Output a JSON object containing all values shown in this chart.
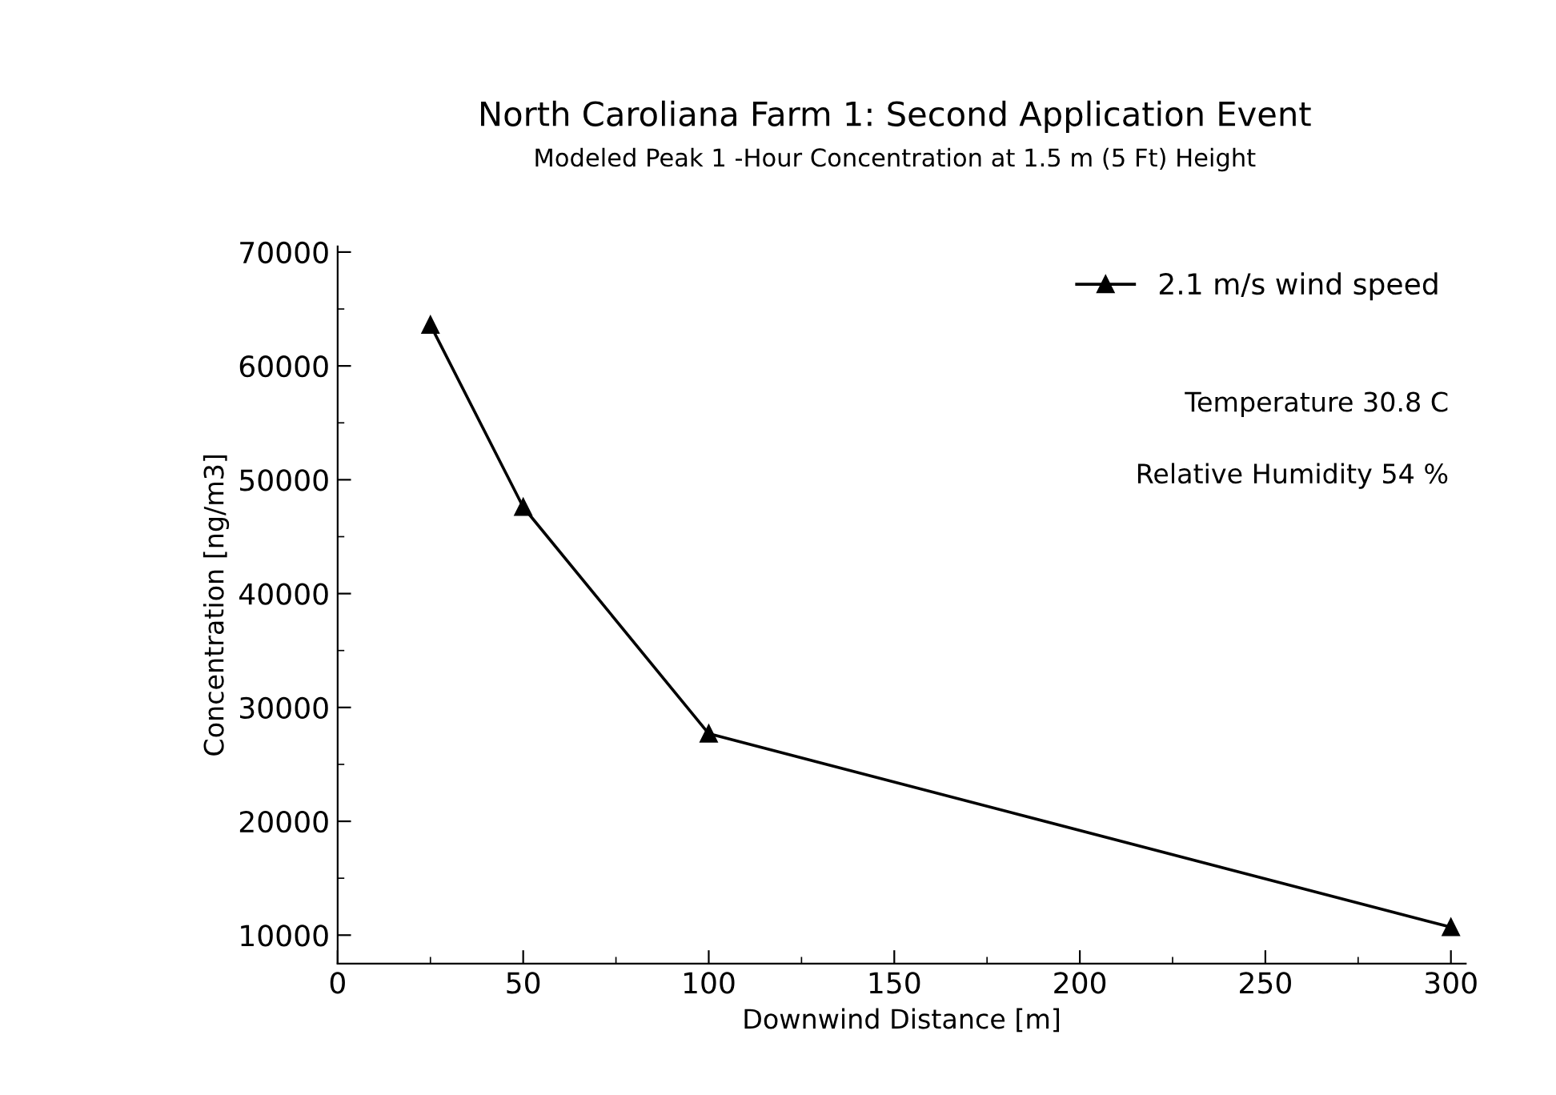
{
  "chart_data": {
    "type": "line",
    "title": "North Caroliana Farm 1: Second Application Event",
    "subtitle": "Modeled Peak 1 -Hour Concentration at 1.5 m (5 Ft) Height",
    "xlabel": "Downwind Distance [m]",
    "ylabel": "Concentration [ng/m3]",
    "x": [
      25,
      50,
      100,
      300
    ],
    "series": [
      {
        "name": "2.1 m/s wind speed",
        "color": "#000000",
        "values": [
          63600,
          47600,
          27700,
          10700
        ]
      }
    ],
    "xlim": [
      0,
      304
    ],
    "xticks": [
      0,
      50,
      100,
      150,
      200,
      250,
      300
    ],
    "ylim": [
      7500,
      70500
    ],
    "yticks": [
      10000,
      20000,
      30000,
      40000,
      50000,
      60000,
      70000
    ],
    "marker": "triangle",
    "line_style": "solid",
    "grid": false,
    "legend": "top right",
    "annotations": [
      "Temperature 30.8 C",
      "Relative Humidity 54 %"
    ]
  }
}
